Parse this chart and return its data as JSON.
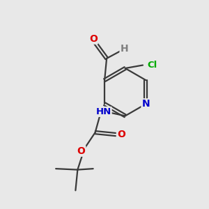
{
  "background_color": "#e8e8e8",
  "bond_color": "#3a3a3a",
  "atom_colors": {
    "O": "#dd0000",
    "N": "#0000cc",
    "Cl": "#00aa00",
    "H": "#808080",
    "C": "#3a3a3a"
  }
}
